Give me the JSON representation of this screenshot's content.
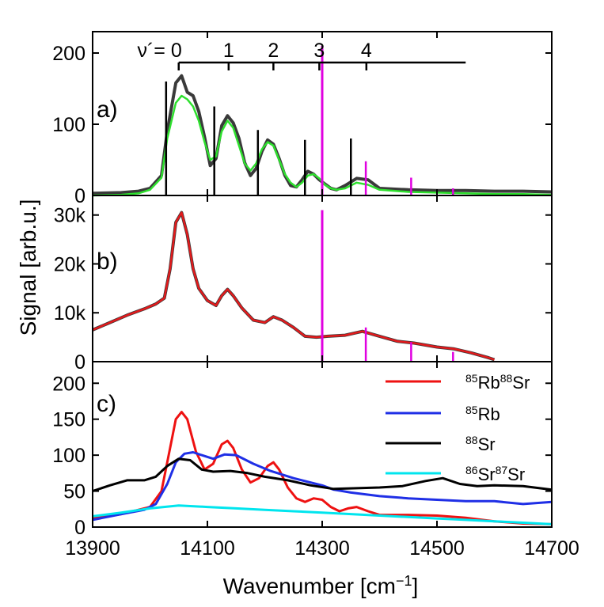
{
  "figure": {
    "ylabel": "Signal [arb.u.]",
    "xlabel_main": "Wavenumber [cm",
    "xlabel_sup": "−1",
    "xlabel_end": "]"
  },
  "colors": {
    "signal": "#3a3a3a",
    "fit": "#2ee02e",
    "smooth": "#e31a1c",
    "marker": "#e000e0",
    "rbsr": "#ee1111",
    "rb": "#1f2fe6",
    "sr": "#000000",
    "srsr": "#00e5ee"
  },
  "chart_data": [
    {
      "type": "line",
      "panel_label": "a)",
      "xlim": [
        13900,
        14700
      ],
      "ylim": [
        0,
        230
      ],
      "x_ticks": [
        13900,
        14100,
        14300,
        14500,
        14700
      ],
      "y_ticks": [
        0,
        100,
        200
      ],
      "y_tick_labels": [
        "0",
        "100",
        "200"
      ],
      "vibrational_label": "ν´= 0",
      "vibrational_numbers": [
        "1",
        "2",
        "3",
        "4"
      ],
      "vibrational_positions": [
        14050,
        14137,
        14215,
        14295,
        14377
      ],
      "progression_bar": [
        14050,
        14550
      ],
      "stick_lines": [
        {
          "x": 14028,
          "y": 160
        },
        {
          "x": 14112,
          "y": 125
        },
        {
          "x": 14188,
          "y": 92
        },
        {
          "x": 14270,
          "y": 78
        },
        {
          "x": 14350,
          "y": 80
        }
      ],
      "magenta_lines": [
        {
          "x": 14300,
          "y": 210
        },
        {
          "x": 14376,
          "y": 48
        },
        {
          "x": 14455,
          "y": 25
        },
        {
          "x": 14528,
          "y": 10
        }
      ],
      "series": [
        {
          "role": "signal",
          "x": [
            13900,
            13950,
            13980,
            14000,
            14020,
            14030,
            14045,
            14055,
            14065,
            14075,
            14085,
            14095,
            14105,
            14115,
            14125,
            14135,
            14145,
            14155,
            14165,
            14175,
            14185,
            14195,
            14205,
            14215,
            14225,
            14235,
            14245,
            14255,
            14265,
            14275,
            14285,
            14295,
            14305,
            14315,
            14325,
            14340,
            14360,
            14380,
            14400,
            14450,
            14500,
            14550,
            14600,
            14650,
            14700
          ],
          "y": [
            3,
            4,
            6,
            10,
            28,
            90,
            158,
            168,
            145,
            140,
            118,
            82,
            42,
            52,
            98,
            112,
            102,
            80,
            46,
            28,
            38,
            62,
            78,
            72,
            52,
            28,
            14,
            12,
            22,
            34,
            30,
            22,
            16,
            10,
            8,
            14,
            24,
            22,
            10,
            8,
            7,
            7,
            6,
            6,
            5
          ]
        },
        {
          "role": "fit",
          "x": [
            13900,
            13950,
            13980,
            14000,
            14020,
            14030,
            14045,
            14055,
            14065,
            14075,
            14085,
            14095,
            14105,
            14115,
            14125,
            14135,
            14145,
            14155,
            14165,
            14175,
            14185,
            14195,
            14205,
            14215,
            14225,
            14235,
            14245,
            14255,
            14265,
            14275,
            14285,
            14295,
            14305,
            14315,
            14325,
            14340,
            14360,
            14380,
            14400,
            14450,
            14500,
            14550,
            14600,
            14650,
            14700
          ],
          "y": [
            0,
            1,
            3,
            8,
            25,
            80,
            130,
            140,
            135,
            125,
            105,
            75,
            50,
            55,
            90,
            105,
            95,
            70,
            45,
            35,
            45,
            65,
            75,
            70,
            50,
            30,
            18,
            12,
            18,
            28,
            30,
            24,
            15,
            10,
            8,
            10,
            18,
            15,
            8,
            5,
            4,
            3,
            2,
            2,
            1
          ]
        }
      ]
    },
    {
      "type": "line",
      "panel_label": "b)",
      "xlim": [
        13900,
        14700
      ],
      "ylim": [
        0,
        34000
      ],
      "y_ticks": [
        0,
        10000,
        20000,
        30000
      ],
      "y_tick_labels": [
        "0",
        "10k",
        "20k",
        "30k"
      ],
      "magenta_lines": [
        {
          "x": 14300,
          "y": 31000
        },
        {
          "x": 14376,
          "y": 7000
        },
        {
          "x": 14455,
          "y": 4000
        },
        {
          "x": 14528,
          "y": 2000
        }
      ],
      "series": [
        {
          "role": "signal",
          "x": [
            13900,
            13930,
            13960,
            13990,
            14010,
            14025,
            14035,
            14045,
            14055,
            14065,
            14075,
            14085,
            14100,
            14115,
            14125,
            14135,
            14145,
            14160,
            14180,
            14200,
            14215,
            14230,
            14250,
            14270,
            14290,
            14310,
            14340,
            14370,
            14400,
            14430,
            14460,
            14500,
            14530,
            14560,
            14590,
            14600
          ],
          "y": [
            6500,
            8000,
            9500,
            10800,
            11800,
            13000,
            19000,
            28500,
            30500,
            26000,
            19000,
            15000,
            12500,
            11500,
            13500,
            14800,
            13500,
            11000,
            8500,
            8000,
            9200,
            8500,
            7000,
            5200,
            5000,
            5200,
            5400,
            6200,
            5200,
            4200,
            3800,
            3000,
            2600,
            1800,
            800,
            400
          ]
        },
        {
          "role": "smooth",
          "x": [
            13900,
            13930,
            13960,
            13990,
            14010,
            14025,
            14035,
            14045,
            14055,
            14065,
            14075,
            14085,
            14100,
            14115,
            14125,
            14135,
            14145,
            14160,
            14180,
            14200,
            14215,
            14230,
            14250,
            14270,
            14290,
            14310,
            14340,
            14370,
            14400,
            14430,
            14460,
            14500,
            14530,
            14560,
            14590,
            14600
          ],
          "y": [
            6500,
            8000,
            9500,
            10800,
            11800,
            13000,
            19000,
            28500,
            30500,
            26000,
            19000,
            15000,
            12500,
            11500,
            13500,
            14800,
            13500,
            11000,
            8500,
            8000,
            9200,
            8500,
            7000,
            5200,
            5000,
            5200,
            5400,
            6200,
            5200,
            4200,
            3800,
            3000,
            2600,
            1800,
            800,
            400
          ]
        }
      ]
    },
    {
      "type": "line",
      "panel_label": "c)",
      "xlim": [
        13900,
        14700
      ],
      "ylim": [
        0,
        230
      ],
      "x_ticks": [
        13900,
        14100,
        14300,
        14500,
        14700
      ],
      "x_tick_labels": [
        "13900",
        "14100",
        "14300",
        "14500",
        "14700"
      ],
      "y_ticks": [
        0,
        50,
        100,
        150,
        200
      ],
      "y_tick_labels": [
        "0",
        "50",
        "100",
        "150",
        "200"
      ],
      "legend_position": "top-right",
      "series": [
        {
          "role": "rbsr",
          "legend_sup1": "85",
          "legend_base1": "Rb",
          "legend_sup2": "88",
          "legend_base2": "Sr",
          "x": [
            13900,
            13950,
            13980,
            14000,
            14020,
            14035,
            14045,
            14055,
            14065,
            14080,
            14095,
            14110,
            14125,
            14135,
            14145,
            14160,
            14175,
            14190,
            14205,
            14215,
            14225,
            14240,
            14255,
            14270,
            14285,
            14300,
            14315,
            14330,
            14345,
            14360,
            14380,
            14400,
            14450,
            14500,
            14550,
            14600,
            14650,
            14700
          ],
          "y": [
            12,
            18,
            24,
            28,
            50,
            110,
            150,
            160,
            150,
            105,
            80,
            88,
            115,
            120,
            110,
            80,
            62,
            68,
            85,
            90,
            80,
            55,
            40,
            35,
            40,
            38,
            28,
            22,
            26,
            28,
            22,
            17,
            17,
            16,
            13,
            8,
            5,
            4
          ]
        },
        {
          "role": "rb",
          "legend_sup1": "85",
          "legend_base1": "Rb",
          "legend_sup2": "",
          "legend_base2": "",
          "x": [
            13900,
            13950,
            13990,
            14010,
            14030,
            14045,
            14060,
            14075,
            14090,
            14110,
            14130,
            14150,
            14180,
            14210,
            14250,
            14280,
            14300,
            14320,
            14350,
            14400,
            14450,
            14500,
            14550,
            14600,
            14650,
            14700
          ],
          "y": [
            10,
            18,
            24,
            32,
            60,
            90,
            102,
            104,
            100,
            95,
            101,
            100,
            88,
            78,
            68,
            62,
            58,
            52,
            48,
            43,
            40,
            38,
            36,
            36,
            32,
            35
          ]
        },
        {
          "role": "sr",
          "legend_sup1": "88",
          "legend_base1": "Sr",
          "legend_sup2": "",
          "legend_base2": "",
          "x": [
            13900,
            13930,
            13960,
            13990,
            14010,
            14030,
            14050,
            14070,
            14090,
            14110,
            14140,
            14170,
            14200,
            14240,
            14280,
            14320,
            14360,
            14400,
            14440,
            14480,
            14510,
            14540,
            14570,
            14600,
            14650,
            14700
          ],
          "y": [
            50,
            58,
            65,
            65,
            70,
            85,
            95,
            93,
            80,
            77,
            78,
            75,
            70,
            65,
            58,
            53,
            54,
            55,
            57,
            64,
            68,
            60,
            57,
            58,
            57,
            52
          ]
        },
        {
          "role": "srsr",
          "legend_sup1": "86",
          "legend_base1": "Sr",
          "legend_sup2": "87",
          "legend_base2": "Sr",
          "x": [
            13900,
            13950,
            14000,
            14050,
            14100,
            14150,
            14200,
            14250,
            14300,
            14350,
            14400,
            14450,
            14500,
            14550,
            14600,
            14650,
            14700
          ],
          "y": [
            15,
            20,
            26,
            30,
            28,
            26,
            24,
            22,
            20,
            18,
            16,
            14,
            12,
            10,
            8,
            6,
            4
          ]
        }
      ]
    }
  ]
}
